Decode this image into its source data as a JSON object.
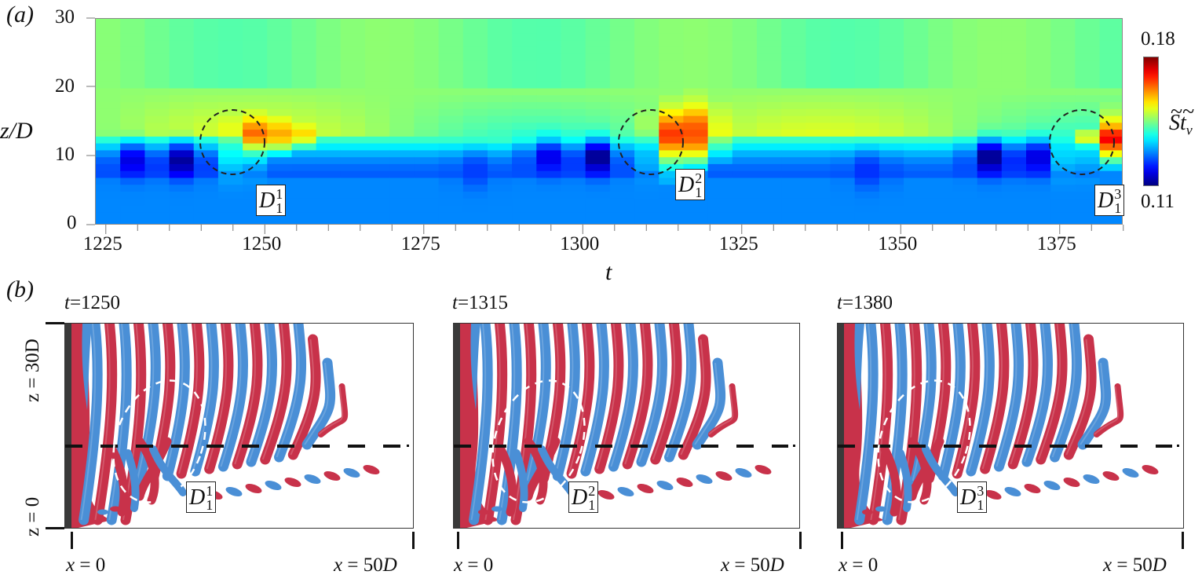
{
  "panel_a": {
    "label": "(a)",
    "ylabel": "z/D",
    "xlabel": "t",
    "yticks": [
      "0",
      "10",
      "20",
      "30"
    ],
    "xticks": [
      "1225",
      "1250",
      "1275",
      "1300",
      "1325",
      "1350",
      "1375"
    ],
    "colorbar": {
      "max_label": "0.18",
      "min_label": "0.11",
      "title": "St̃_v"
    },
    "annotations": [
      {
        "id": "D1_1",
        "base": "D",
        "sup": "1",
        "sub": "1",
        "t_center": 1246,
        "z_center": 11.5
      },
      {
        "id": "D1_2",
        "base": "D",
        "sup": "2",
        "sub": "1",
        "t_center": 1311,
        "z_center": 11.5
      },
      {
        "id": "D1_3",
        "base": "D",
        "sup": "3",
        "sub": "1",
        "t_center": 1378,
        "z_center": 11.5
      }
    ]
  },
  "panel_b": {
    "label": "(b)",
    "z_top_label": "z = 30D",
    "z_bottom_label": "z = 0",
    "snapshots": [
      {
        "title_var": "t",
        "title_val": "=1250",
        "tag_sup": "1",
        "tag_sub": "1",
        "x_left": "x = 0",
        "x_right": "x = 50D"
      },
      {
        "title_var": "t",
        "title_val": "=1315",
        "tag_sup": "2",
        "tag_sub": "1",
        "x_left": "x = 0",
        "x_right": "x = 50D"
      },
      {
        "title_var": "t",
        "title_val": "=1380",
        "tag_sup": "3",
        "tag_sub": "1",
        "x_left": "x = 0",
        "x_right": "x = 50D"
      }
    ],
    "colors": {
      "positive": "#c8324a",
      "negative": "#4a8fd6",
      "wall": "#3a3a3a"
    }
  },
  "chart_data": [
    {
      "type": "heatmap",
      "title": "(a) Spanwise distribution of local vortex shedding Strouhal number over time",
      "xlabel": "t",
      "ylabel": "z/D",
      "colorbar_label": "St̃_v",
      "xlim": [
        1223,
        1386
      ],
      "ylim": [
        0,
        30
      ],
      "clim": [
        0.11,
        0.18
      ],
      "colormap": "jet",
      "x_major_ticks": [
        1225,
        1250,
        1275,
        1300,
        1325,
        1350,
        1375
      ],
      "x_minor_tick_step": 5,
      "y_ticks": [
        0,
        10,
        20,
        30
      ],
      "grid": false,
      "description_by_band": {
        "z_20_to_30": "~0.145 (green) nearly uniform",
        "z_14_to_20": "0.145-0.155 (green-yellow) with slow modulation",
        "z_8_to_12": "low 0.115-0.13 (blue to dark blue) except at dislocation events",
        "z_0_to_7": "~0.125-0.13 (medium blue) nearly uniform"
      },
      "events": [
        {
          "label": "D_1^1",
          "t": 1246,
          "z": 11.5,
          "peak_St": 0.168,
          "peak_t": 1249,
          "peak_z": 13
        },
        {
          "label": "D_1^2",
          "t": 1311,
          "z": 11.5,
          "peak_St": 0.172,
          "peak_t": 1315,
          "peak_z": 12.5
        },
        {
          "label": "D_1^3",
          "t": 1378,
          "z": 11.5,
          "peak_St": 0.18,
          "peak_t": 1384,
          "peak_z": 12.5
        }
      ],
      "minima": [
        {
          "t": 1229,
          "z": 9.5,
          "St": 0.118
        },
        {
          "t": 1237,
          "z": 9.5,
          "St": 0.112
        },
        {
          "t": 1294,
          "z": 10,
          "St": 0.117
        },
        {
          "t": 1302,
          "z": 10,
          "St": 0.112
        },
        {
          "t": 1364,
          "z": 10,
          "St": 0.112
        },
        {
          "t": 1371,
          "z": 10,
          "St": 0.116
        }
      ]
    }
  ]
}
